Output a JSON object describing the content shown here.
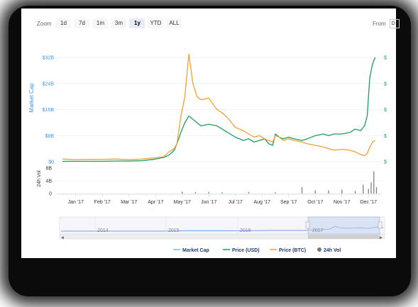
{
  "toolbar": {
    "zoom_label": "Zoom",
    "buttons": [
      "1d",
      "7d",
      "1m",
      "3m",
      "1y",
      "YTD",
      "ALL"
    ],
    "selected": "1y",
    "from_label": "From",
    "from_value": "D"
  },
  "chart_data": {
    "type": "line",
    "ylabel_left": "Market Cap",
    "ylabel_vol": "24h Vol",
    "y_ticks_left": [
      "$0",
      "$8B",
      "$16B",
      "$24B",
      "$32B"
    ],
    "ylim_left": [
      0,
      32
    ],
    "vol_ticks": [
      "0",
      "4B",
      "8B"
    ],
    "x_ticks": [
      "Jan '17",
      "Feb '17",
      "Mar '17",
      "Apr '17",
      "May '17",
      "Jun '17",
      "Jul '17",
      "Aug '17",
      "Sep '17",
      "Oct '17",
      "Nov '17",
      "Dec '17"
    ],
    "right_axis_tick_prefix": "$",
    "navigator_years": [
      "2014",
      "2015",
      "2016",
      "2017"
    ],
    "legend": [
      {
        "label": "Market Cap",
        "color": "#7cb5ec",
        "marker": "line"
      },
      {
        "label": "Price (USD)",
        "color": "#1f9e58",
        "marker": "line"
      },
      {
        "label": "Price (BTC)",
        "color": "#f2a134",
        "marker": "line"
      },
      {
        "label": "24h Vol",
        "color": "#777777",
        "marker": "dot"
      }
    ],
    "x": [
      0,
      0.5,
      1,
      1.5,
      2,
      2.5,
      3,
      3.2,
      3.5,
      3.8,
      4,
      4.2,
      4.3,
      4.45,
      4.6,
      4.75,
      4.9,
      5.05,
      5.2,
      5.5,
      5.8,
      6,
      6.2,
      6.5,
      6.8,
      7,
      7.2,
      7.4,
      7.6,
      7.75,
      7.9,
      8,
      8.15,
      8.3,
      8.5,
      8.7,
      9,
      9.2,
      9.5,
      9.8,
      10,
      10.2,
      10.5,
      10.8,
      11,
      11.2,
      11.35,
      11.45,
      11.55,
      11.65,
      11.75
    ],
    "series": [
      {
        "name": "Price (USD)",
        "color": "#1f9e58",
        "values": [
          0.1,
          0.1,
          0.1,
          0.1,
          0.2,
          0.2,
          0.3,
          0.5,
          0.8,
          1.3,
          2.0,
          3.5,
          5.5,
          9.0,
          12.0,
          14.0,
          13.0,
          12.0,
          11.0,
          11.5,
          11.0,
          10.0,
          9.0,
          7.5,
          6.5,
          7.0,
          6.0,
          6.5,
          7.0,
          5.5,
          5.0,
          8.5,
          7.5,
          7.0,
          7.5,
          7.0,
          6.5,
          7.0,
          8.0,
          8.5,
          8.0,
          8.5,
          8.5,
          9.0,
          10.0,
          9.5,
          11.0,
          14.0,
          26.0,
          30.0,
          32.0
        ]
      },
      {
        "name": "Price (BTC)",
        "color": "#f2a134",
        "values": [
          0.8,
          0.6,
          0.7,
          0.7,
          0.8,
          0.6,
          0.8,
          1.0,
          1.2,
          1.5,
          3.0,
          4.0,
          5.5,
          14.0,
          20.0,
          33.0,
          24.0,
          20.0,
          19.0,
          19.5,
          16.0,
          15.0,
          13.5,
          10.5,
          9.5,
          8.5,
          7.5,
          8.0,
          7.0,
          6.5,
          6.0,
          8.0,
          7.5,
          6.5,
          7.0,
          6.5,
          6.0,
          5.5,
          5.0,
          4.5,
          4.0,
          3.5,
          3.8,
          3.5,
          3.0,
          2.2,
          1.8,
          2.5,
          4.5,
          6.0,
          6.5
        ]
      }
    ],
    "volume": {
      "ylim": [
        0,
        8
      ],
      "x": [
        4.5,
        5.0,
        5.5,
        6.0,
        7.0,
        8.0,
        9.0,
        9.5,
        10.0,
        10.5,
        11.0,
        11.3,
        11.5,
        11.6,
        11.7,
        11.8
      ],
      "values": [
        0.6,
        0.4,
        0.5,
        0.4,
        0.5,
        0.4,
        2.0,
        1.0,
        1.0,
        1.2,
        0.8,
        2.8,
        1.5,
        3.5,
        7.0,
        2.0
      ]
    },
    "grid": true,
    "legend_position": "bottom"
  }
}
